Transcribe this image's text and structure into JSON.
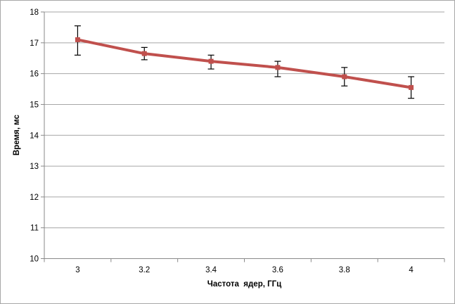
{
  "colors": {
    "series_line": "#C0504D",
    "error_bar": "#000000",
    "gridline": "#A6A6A6",
    "axis": "#898989",
    "chart_border": "#A7A7A7",
    "background": "#FFFFFF",
    "tick_label": "#000000"
  },
  "chart_data": {
    "type": "line",
    "title": "",
    "xlabel": "Частота  ядер, ГГц",
    "ylabel": "Время, мс",
    "categories": [
      "3",
      "3.2",
      "3.4",
      "3.6",
      "3.8",
      "4"
    ],
    "x": [
      3,
      3.2,
      3.4,
      3.6,
      3.8,
      4
    ],
    "y_ticks": [
      "10",
      "11",
      "12",
      "13",
      "14",
      "15",
      "16",
      "17",
      "18"
    ],
    "ylim": [
      10,
      18
    ],
    "grid": true,
    "legend": false,
    "series": [
      {
        "values": [
          17.1,
          16.65,
          16.4,
          16.2,
          15.9,
          15.55
        ],
        "error_high": [
          17.55,
          16.85,
          16.6,
          16.4,
          16.2,
          15.9
        ],
        "error_low": [
          16.6,
          16.45,
          16.15,
          15.9,
          15.6,
          15.2
        ],
        "marker": "square"
      }
    ]
  }
}
